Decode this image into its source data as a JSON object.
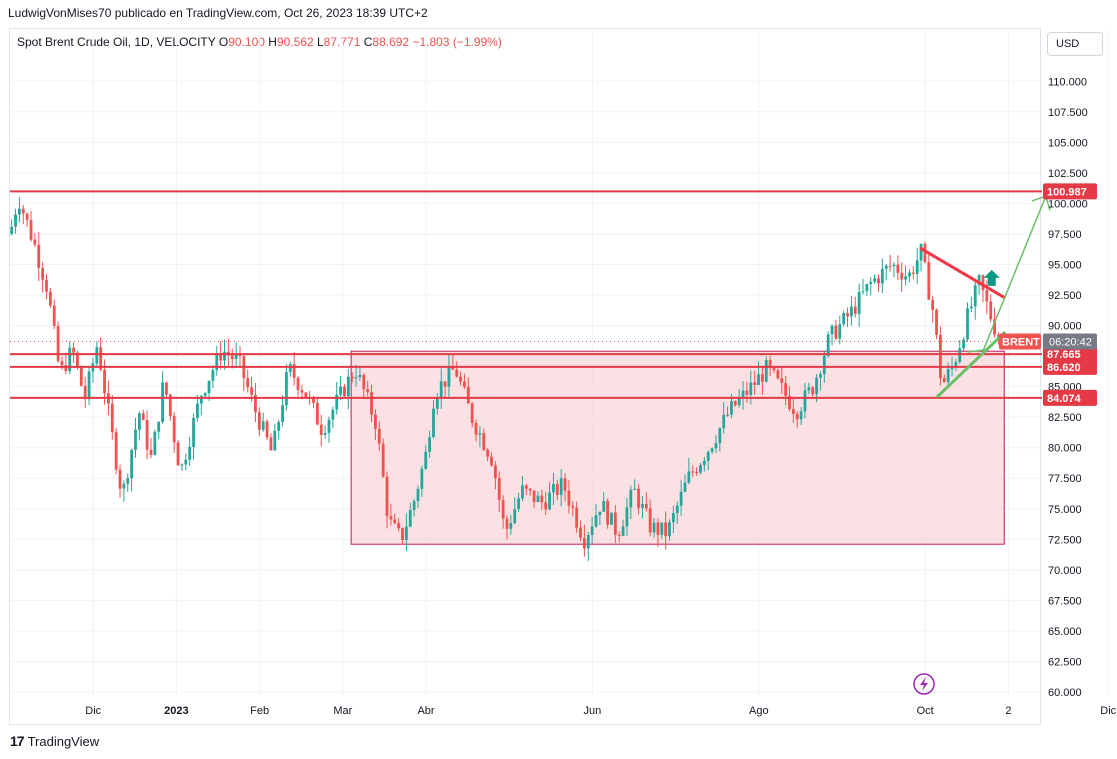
{
  "header": {
    "publisher": "LudwigVonMises70 publicado en TradingView.com, Oct 26, 2023 18:39 UTC+2"
  },
  "legend": {
    "symbol": "Spot Brent Crude Oil, 1D, VELOCITY",
    "o_label": "O",
    "o_value": "90.100",
    "h_label": "H",
    "h_value": "90.562",
    "l_label": "L",
    "l_value": "87.771",
    "c_label": "C",
    "c_value": "88.692",
    "change": "−1.803 (−1.99%)"
  },
  "currency_button": "USD",
  "footer": {
    "brand": "TradingView",
    "logo_glyph": "17"
  },
  "colors": {
    "up": "#26a69a",
    "down": "#ef5350",
    "level": "#e53945",
    "range_fill": "#f8c8cc",
    "range_border": "#c2185b",
    "up_arrow": "#6abf69",
    "badge_gray": "#787b86"
  },
  "chart_data": {
    "type": "candlestick",
    "ylim": [
      60,
      112.5
    ],
    "y_ticks": [
      "110.000",
      "107.500",
      "105.000",
      "102.500",
      "100.000",
      "97.500",
      "95.000",
      "92.500",
      "90.000",
      "87.500",
      "85.000",
      "82.500",
      "80.000",
      "77.500",
      "75.000",
      "72.500",
      "70.000",
      "67.500",
      "65.000",
      "62.500",
      "60.000"
    ],
    "x_ticks": [
      {
        "label": "Dic",
        "month": 1
      },
      {
        "label": "2023",
        "month": 2
      },
      {
        "label": "Feb",
        "month": 3
      },
      {
        "label": "Mar",
        "month": 4
      },
      {
        "label": "Abr",
        "month": 5
      },
      {
        "label": "Jun",
        "month": 7
      },
      {
        "label": "Ago",
        "month": 9
      },
      {
        "label": "Oct",
        "month": 11
      },
      {
        "label": "2",
        "month": 12
      },
      {
        "label": "Dic",
        "month": 13.2
      }
    ],
    "levels": [
      {
        "value": 100.987,
        "label": "100.987"
      },
      {
        "value": 87.665,
        "label": "87.665"
      },
      {
        "value": 86.62,
        "label": "86.620"
      },
      {
        "value": 84.074,
        "label": "84.074"
      }
    ],
    "price_badge": {
      "symbol": "BRENT",
      "value": 88.692,
      "countdown": "06:20:42"
    },
    "range_box": {
      "x_start": 4.1,
      "x_end": 11.95,
      "y_low": 72.1,
      "y_high": 87.9
    },
    "resistance_line": {
      "x": [
        10.95,
        11.95
      ],
      "y": [
        96.3,
        92.3
      ]
    },
    "support_line": {
      "x": [
        11.15,
        11.95
      ],
      "y": [
        84.2,
        89.4
      ]
    },
    "projection_arrow": {
      "x": [
        11.7,
        12.45
      ],
      "y": [
        88.0,
        100.6
      ]
    },
    "small_up_arrow": {
      "x": 11.8,
      "y": 93.9
    },
    "keypoints": [
      {
        "t": 0.0,
        "p": 97.5
      },
      {
        "t": 0.1,
        "p": 100.5
      },
      {
        "t": 0.3,
        "p": 96.5
      },
      {
        "t": 0.45,
        "p": 93.0
      },
      {
        "t": 0.6,
        "p": 86.0
      },
      {
        "t": 0.75,
        "p": 88.0
      },
      {
        "t": 0.9,
        "p": 84.0
      },
      {
        "t": 1.05,
        "p": 88.5
      },
      {
        "t": 1.25,
        "p": 80.0
      },
      {
        "t": 1.35,
        "p": 76.0
      },
      {
        "t": 1.55,
        "p": 83.0
      },
      {
        "t": 1.7,
        "p": 79.0
      },
      {
        "t": 1.85,
        "p": 85.5
      },
      {
        "t": 2.05,
        "p": 78.0
      },
      {
        "t": 2.3,
        "p": 84.5
      },
      {
        "t": 2.55,
        "p": 88.0
      },
      {
        "t": 2.75,
        "p": 87.0
      },
      {
        "t": 2.95,
        "p": 83.0
      },
      {
        "t": 3.15,
        "p": 79.5
      },
      {
        "t": 3.35,
        "p": 86.5
      },
      {
        "t": 3.55,
        "p": 84.5
      },
      {
        "t": 3.75,
        "p": 81.5
      },
      {
        "t": 3.95,
        "p": 84.0
      },
      {
        "t": 4.15,
        "p": 86.5
      },
      {
        "t": 4.4,
        "p": 82.0
      },
      {
        "t": 4.55,
        "p": 74.0
      },
      {
        "t": 4.7,
        "p": 72.5
      },
      {
        "t": 4.85,
        "p": 75.5
      },
      {
        "t": 5.0,
        "p": 79.5
      },
      {
        "t": 5.1,
        "p": 84.5
      },
      {
        "t": 5.35,
        "p": 86.5
      },
      {
        "t": 5.55,
        "p": 82.5
      },
      {
        "t": 5.8,
        "p": 79.0
      },
      {
        "t": 5.95,
        "p": 73.0
      },
      {
        "t": 6.15,
        "p": 76.5
      },
      {
        "t": 6.4,
        "p": 75.5
      },
      {
        "t": 6.65,
        "p": 77.0
      },
      {
        "t": 6.9,
        "p": 72.5
      },
      {
        "t": 7.1,
        "p": 75.5
      },
      {
        "t": 7.3,
        "p": 73.0
      },
      {
        "t": 7.5,
        "p": 76.5
      },
      {
        "t": 7.7,
        "p": 73.5
      },
      {
        "t": 7.9,
        "p": 73.0
      },
      {
        "t": 8.15,
        "p": 77.5
      },
      {
        "t": 8.4,
        "p": 80.0
      },
      {
        "t": 8.65,
        "p": 83.0
      },
      {
        "t": 8.85,
        "p": 84.5
      },
      {
        "t": 9.1,
        "p": 86.5
      },
      {
        "t": 9.3,
        "p": 84.5
      },
      {
        "t": 9.45,
        "p": 83.0
      },
      {
        "t": 9.65,
        "p": 85.0
      },
      {
        "t": 9.85,
        "p": 89.0
      },
      {
        "t": 10.1,
        "p": 91.0
      },
      {
        "t": 10.35,
        "p": 93.5
      },
      {
        "t": 10.6,
        "p": 95.0
      },
      {
        "t": 10.8,
        "p": 94.0
      },
      {
        "t": 10.95,
        "p": 96.0
      },
      {
        "t": 11.1,
        "p": 91.0
      },
      {
        "t": 11.2,
        "p": 85.0
      },
      {
        "t": 11.35,
        "p": 87.0
      },
      {
        "t": 11.5,
        "p": 90.5
      },
      {
        "t": 11.65,
        "p": 93.5
      },
      {
        "t": 11.8,
        "p": 90.5
      },
      {
        "t": 11.9,
        "p": 88.7
      }
    ]
  }
}
